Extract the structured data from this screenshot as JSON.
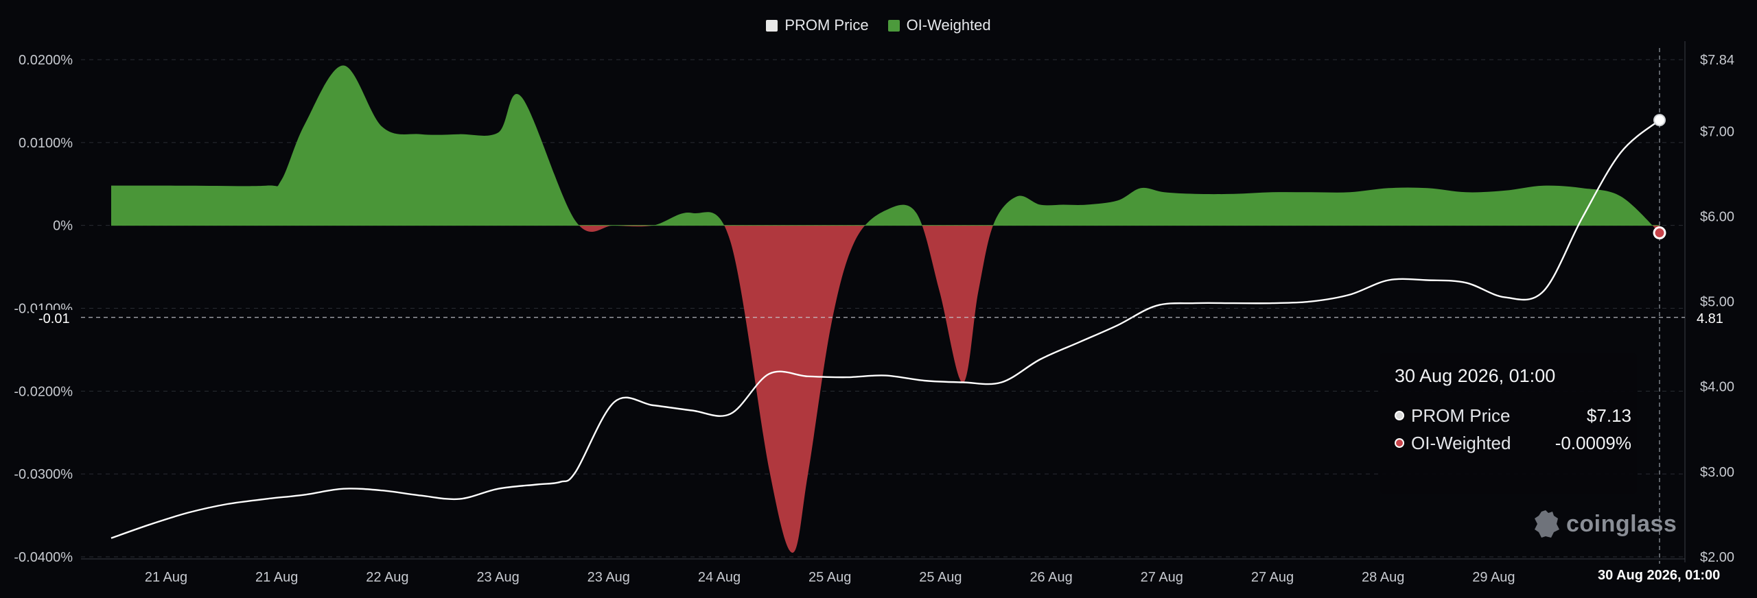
{
  "legend": [
    {
      "label": "PROM Price",
      "color": "#e8e8e8"
    },
    {
      "label": "OI-Weighted",
      "color": "#4c9a3c"
    }
  ],
  "colors": {
    "positive": "#4a9638",
    "negative": "#b0383e",
    "price_line": "#ffffff",
    "grid": "#2a2d35",
    "background": "#06070b"
  },
  "tooltip": {
    "title": "30 Aug 2026, 01:00",
    "rows": [
      {
        "label": "PROM Price",
        "value": "$7.13",
        "dot": "#d9d9d9"
      },
      {
        "label": "OI-Weighted",
        "value": "-0.0009%",
        "dot": "#c7434a"
      }
    ]
  },
  "crosshair": {
    "left_label": "-0.01",
    "right_label": "4.81",
    "bottom_label": "30 Aug 2026, 01:00"
  },
  "watermark": "coinglass",
  "chart_data": {
    "type": "area",
    "x_labels": [
      "21 Aug",
      "21 Aug",
      "22 Aug",
      "23 Aug",
      "23 Aug",
      "24 Aug",
      "25 Aug",
      "25 Aug",
      "26 Aug",
      "27 Aug",
      "27 Aug",
      "28 Aug",
      "29 Aug",
      "2"
    ],
    "x_range": [
      0,
      20
    ],
    "left_axis": {
      "ticks": [
        "0.0200%",
        "0.0100%",
        "0%",
        "-0.0100%",
        "-0.0200%",
        "-0.0300%",
        "-0.0400%"
      ],
      "tick_values": [
        0.02,
        0.01,
        0,
        -0.01,
        -0.02,
        -0.03,
        -0.04
      ],
      "range": [
        -0.04,
        0.02
      ]
    },
    "right_axis": {
      "ticks": [
        "$7.84",
        "$7.00",
        "$6.00",
        "$5.00",
        "$4.00",
        "$3.00",
        "$2.00"
      ],
      "tick_values": [
        7.84,
        7.0,
        6.0,
        5.0,
        4.0,
        3.0,
        2.0
      ],
      "range": [
        2.0,
        7.84
      ]
    },
    "grid": true,
    "legend_position": "top-center",
    "series": [
      {
        "name": "OI-Weighted",
        "axis": "left",
        "style": "area",
        "x": [
          0,
          1,
          2,
          2.2,
          2.5,
          3,
          3.5,
          4,
          4.5,
          5,
          5.3,
          6,
          6.5,
          7,
          7.5,
          8,
          8.5,
          8.8,
          9,
          9.3,
          9.6,
          10,
          10.4,
          10.7,
          11,
          11.2,
          11.4,
          11.7,
          12,
          12.3,
          12.6,
          13,
          13.3,
          13.6,
          14,
          14.5,
          15,
          15.5,
          16,
          16.5,
          17,
          17.5,
          18,
          18.5,
          19,
          19.5,
          20
        ],
        "values": [
          0.0048,
          0.0048,
          0.0048,
          0.0055,
          0.0122,
          0.0193,
          0.0119,
          0.011,
          0.011,
          0.0112,
          0.0155,
          0.0005,
          0.0,
          0.0,
          0.0015,
          -0.002,
          -0.0295,
          -0.0395,
          -0.03,
          -0.012,
          -0.002,
          0.0018,
          0.0015,
          -0.008,
          -0.019,
          -0.008,
          0.0002,
          0.0035,
          0.0025,
          0.0025,
          0.0025,
          0.003,
          0.0045,
          0.004,
          0.0038,
          0.0038,
          0.004,
          0.004,
          0.004,
          0.0045,
          0.0045,
          0.004,
          0.0042,
          0.0048,
          0.0045,
          0.0035,
          -0.0009
        ]
      },
      {
        "name": "PROM Price",
        "axis": "right",
        "style": "line",
        "x": [
          0,
          0.5,
          1,
          1.5,
          2,
          2.5,
          3,
          3.5,
          4,
          4.5,
          5,
          5.5,
          5.8,
          6,
          6.5,
          7,
          7.5,
          8,
          8.5,
          9,
          9.5,
          10,
          10.5,
          11,
          11.5,
          12,
          12.5,
          13,
          13.5,
          14,
          14.5,
          15,
          15.5,
          16,
          16.5,
          17,
          17.5,
          18,
          18.5,
          19,
          19.5,
          20
        ],
        "values": [
          2.22,
          2.38,
          2.52,
          2.62,
          2.68,
          2.73,
          2.8,
          2.78,
          2.72,
          2.68,
          2.8,
          2.85,
          2.88,
          3.0,
          3.82,
          3.78,
          3.72,
          3.68,
          4.15,
          4.12,
          4.11,
          4.13,
          4.07,
          4.05,
          4.05,
          4.32,
          4.52,
          4.72,
          4.95,
          4.98,
          4.98,
          4.98,
          5.0,
          5.08,
          5.25,
          5.25,
          5.22,
          5.05,
          5.12,
          5.98,
          6.75,
          7.13
        ]
      }
    ]
  }
}
